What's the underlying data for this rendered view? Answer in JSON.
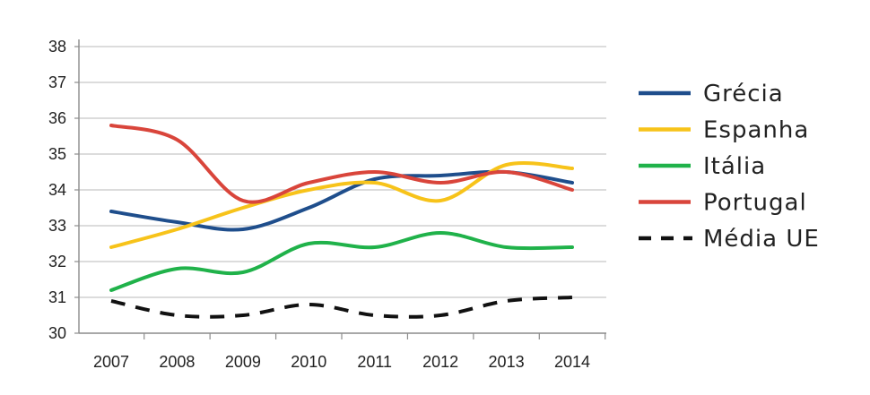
{
  "chart_data": {
    "type": "line",
    "title": "",
    "xlabel": "",
    "ylabel": "",
    "x": [
      "2007",
      "2008",
      "2009",
      "2010",
      "2011",
      "2012",
      "2013",
      "2014"
    ],
    "ylim": [
      30,
      38
    ],
    "yticks": [
      "30",
      "31",
      "32",
      "33",
      "34",
      "35",
      "36",
      "37",
      "38"
    ],
    "grid": "horizontal",
    "legend_position": "right",
    "series": [
      {
        "name": "Grécia",
        "color": "#1f4e8c",
        "dashed": false,
        "values": [
          33.4,
          33.1,
          32.9,
          33.5,
          34.3,
          34.4,
          34.5,
          34.2
        ]
      },
      {
        "name": "Espanha",
        "color": "#f7c31a",
        "dashed": false,
        "values": [
          32.4,
          32.9,
          33.5,
          34.0,
          34.2,
          33.7,
          34.7,
          34.6
        ]
      },
      {
        "name": "Itália",
        "color": "#20b24a",
        "dashed": false,
        "values": [
          31.2,
          31.8,
          31.7,
          32.5,
          32.4,
          32.8,
          32.4,
          32.4
        ]
      },
      {
        "name": "Portugal",
        "color": "#d9453b",
        "dashed": false,
        "values": [
          35.8,
          35.4,
          33.7,
          34.2,
          34.5,
          34.2,
          34.5,
          34.0
        ]
      },
      {
        "name": "Média UE",
        "color": "#111111",
        "dashed": true,
        "values": [
          30.9,
          30.5,
          30.5,
          30.8,
          30.5,
          30.5,
          30.9,
          31.0
        ]
      }
    ]
  }
}
